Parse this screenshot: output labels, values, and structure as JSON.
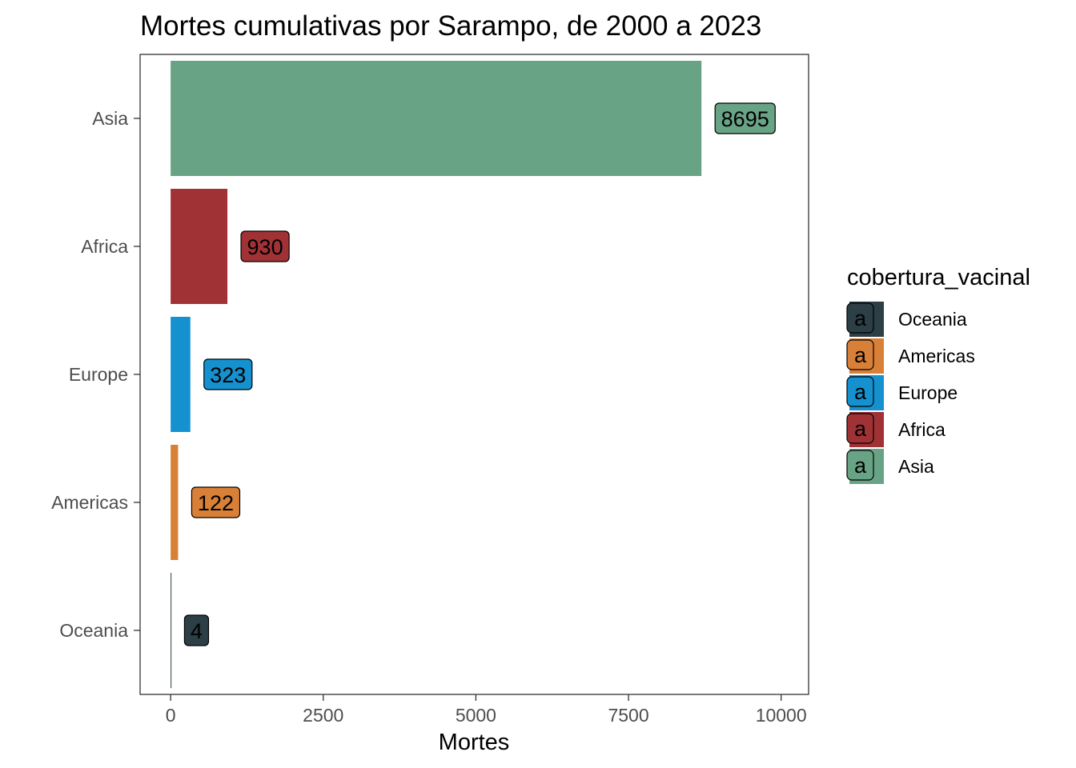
{
  "chart_data": {
    "type": "bar",
    "orientation": "horizontal",
    "title": "Mortes cumulativas por Sarampo, de 2000 a 2023",
    "xlabel": "Mortes",
    "ylabel": "",
    "xlim": [
      -500,
      10450
    ],
    "x_ticks": [
      0,
      2500,
      5000,
      7500,
      10000
    ],
    "grid": false,
    "categories": [
      "Asia",
      "Africa",
      "Europe",
      "Americas",
      "Oceania"
    ],
    "values": [
      8695,
      930,
      323,
      122,
      4
    ],
    "colors": {
      "Asia": "#69a385",
      "Africa": "#a03236",
      "Europe": "#1591cf",
      "Americas": "#d88037",
      "Oceania": "#2c3e46"
    },
    "legend": {
      "title": "cobertura_vacinal",
      "position": "right",
      "key_glyph": "a",
      "entries": [
        "Oceania",
        "Americas",
        "Europe",
        "Africa",
        "Asia"
      ]
    }
  }
}
